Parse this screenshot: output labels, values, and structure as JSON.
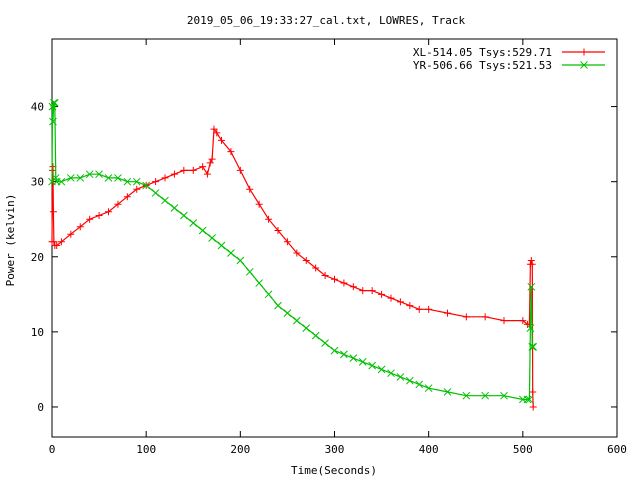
{
  "chart_data": {
    "type": "line",
    "title": "2019_05_06_19:33:27_cal.txt, LOWRES, Track",
    "xlabel": "Time(Seconds)",
    "ylabel": "Power (kelvin)",
    "xlim": [
      0,
      600
    ],
    "ylim": [
      -4,
      49
    ],
    "x_ticks": [
      0,
      100,
      200,
      300,
      400,
      500,
      600
    ],
    "y_ticks": [
      0,
      10,
      20,
      30,
      40
    ],
    "x_tick_labels": [
      "0",
      "100",
      "200",
      "300",
      "400",
      "500",
      "600"
    ],
    "y_tick_labels": [
      "0",
      "10",
      "20",
      "30",
      "40"
    ],
    "grid": false,
    "legend_position": "top-right",
    "series": [
      {
        "name": "XL-514.05 Tsys:529.71",
        "color": "#ff0000",
        "marker": "plus",
        "x": [
          0,
          0.5,
          1,
          1.5,
          2,
          3,
          5,
          10,
          20,
          30,
          40,
          50,
          60,
          70,
          80,
          90,
          100,
          110,
          120,
          130,
          140,
          150,
          160,
          165,
          168,
          170,
          172,
          175,
          180,
          190,
          200,
          210,
          220,
          230,
          240,
          250,
          260,
          270,
          280,
          290,
          300,
          310,
          320,
          330,
          340,
          350,
          360,
          370,
          380,
          390,
          400,
          420,
          440,
          460,
          480,
          500,
          505,
          507,
          508,
          509,
          510,
          510.5,
          511
        ],
        "y": [
          22,
          31.5,
          32,
          26,
          22,
          21.5,
          21.5,
          22,
          23,
          24,
          25,
          25.5,
          26,
          27,
          28,
          29,
          29.5,
          30,
          30.5,
          31,
          31.5,
          31.5,
          32,
          31,
          32.5,
          33,
          37,
          36.5,
          35.5,
          34,
          31.5,
          29,
          27,
          25,
          23.5,
          22,
          20.5,
          19.5,
          18.5,
          17.5,
          17,
          16.5,
          16,
          15.5,
          15.5,
          15,
          14.5,
          14,
          13.5,
          13,
          13,
          12.5,
          12,
          12,
          11.5,
          11.5,
          11,
          11,
          19,
          19.5,
          19,
          2,
          0
        ]
      },
      {
        "name": "YR-506.66 Tsys:521.53",
        "color": "#00c000",
        "marker": "cross",
        "x": [
          0,
          0.5,
          1,
          2,
          3,
          4,
          5,
          10,
          20,
          30,
          40,
          50,
          60,
          70,
          80,
          90,
          100,
          110,
          120,
          130,
          140,
          150,
          160,
          170,
          180,
          190,
          200,
          210,
          220,
          230,
          240,
          250,
          260,
          270,
          280,
          290,
          300,
          310,
          320,
          330,
          340,
          350,
          360,
          370,
          380,
          390,
          400,
          420,
          440,
          460,
          480,
          500,
          505,
          507,
          508,
          509,
          510,
          511
        ],
        "y": [
          30,
          40,
          38,
          40.5,
          40.5,
          30.5,
          30,
          30,
          30.5,
          30.5,
          31,
          31,
          30.5,
          30.5,
          30,
          30,
          29.5,
          28.5,
          27.5,
          26.5,
          25.5,
          24.5,
          23.5,
          22.5,
          21.5,
          20.5,
          19.5,
          18,
          16.5,
          15,
          13.5,
          12.5,
          11.5,
          10.5,
          9.5,
          8.5,
          7.5,
          7,
          6.5,
          6,
          5.5,
          5,
          4.5,
          4,
          3.5,
          3,
          2.5,
          2,
          1.5,
          1.5,
          1.5,
          1,
          1,
          1,
          10.5,
          16,
          8,
          8
        ]
      }
    ]
  }
}
